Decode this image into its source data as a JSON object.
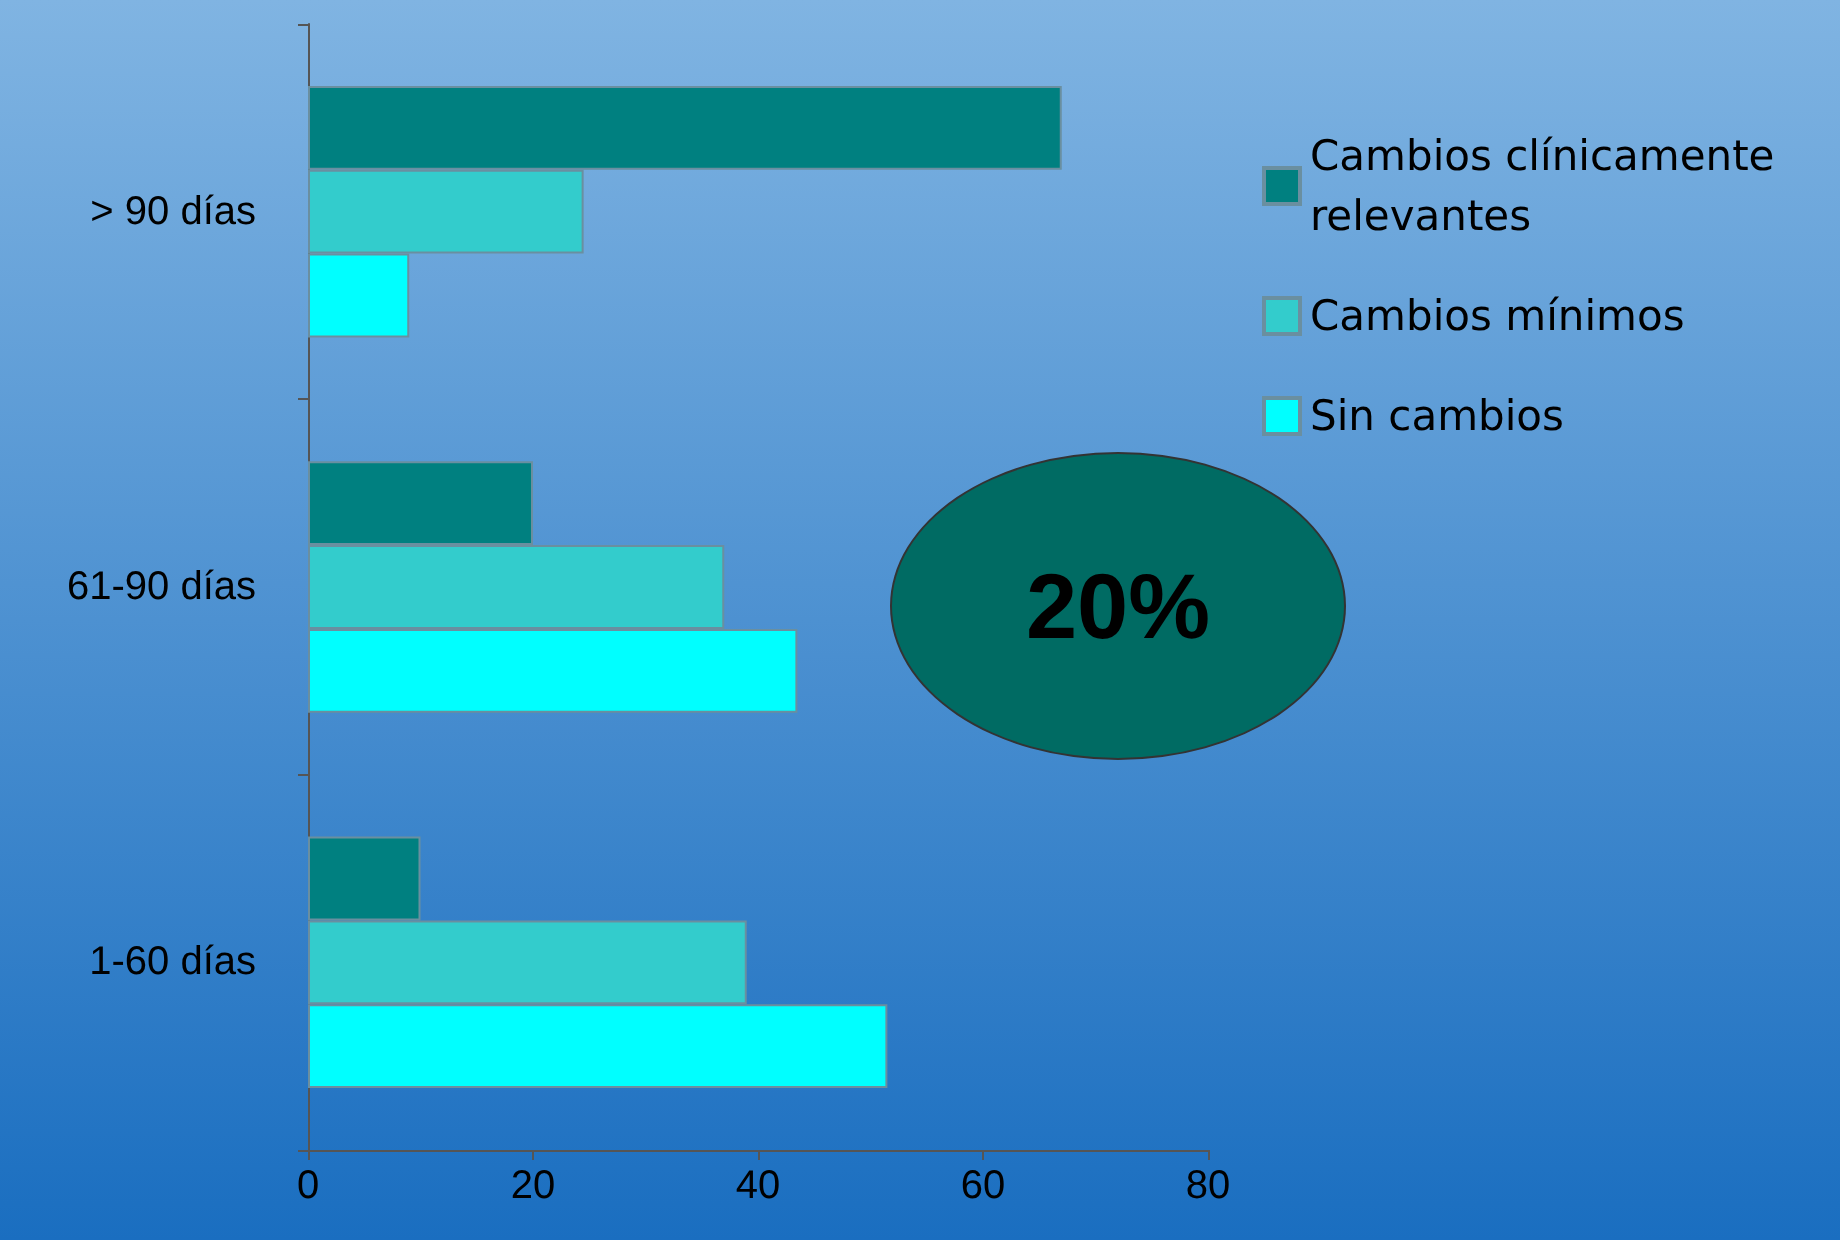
{
  "chart_data": {
    "type": "bar",
    "orientation": "horizontal",
    "categories": [
      "> 90 días",
      "61-90 días",
      "1-60 días"
    ],
    "series": [
      {
        "name": "Cambios clínicamente relevantes",
        "color": "#008080",
        "values": [
          67,
          20,
          10
        ]
      },
      {
        "name": "Cambios mínimos",
        "color": "#33cccc",
        "values": [
          24.5,
          37,
          39
        ]
      },
      {
        "name": "Sin cambios",
        "color": "#00ffff",
        "values": [
          9,
          43.5,
          51.5
        ]
      }
    ],
    "xlim": [
      0,
      80
    ],
    "xticks": [
      0,
      20,
      40,
      60,
      80
    ],
    "grid": false,
    "legend": "top right",
    "annotations": [
      "20%"
    ]
  }
}
